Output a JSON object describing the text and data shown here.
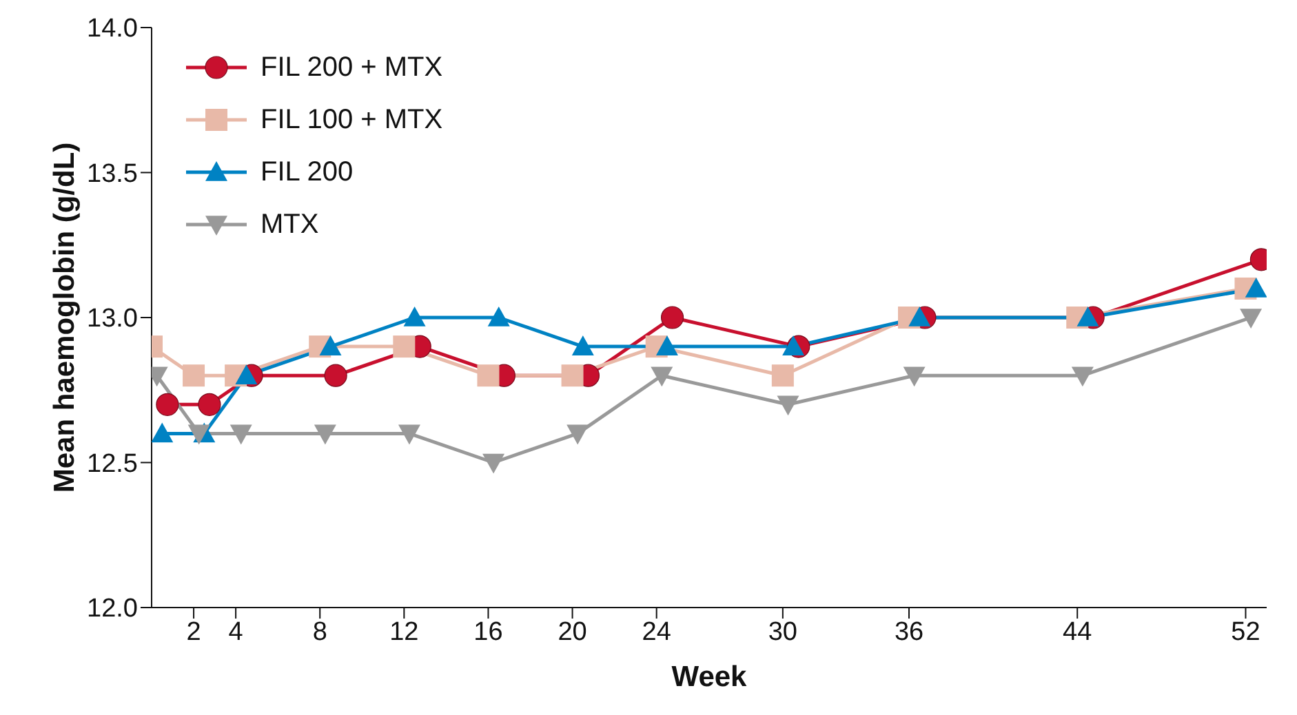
{
  "chart_data": {
    "type": "line",
    "xlabel": "Week",
    "ylabel": "Mean haemoglobin (g/dL)",
    "xlim": [
      0,
      53
    ],
    "xticks": [
      2,
      4,
      8,
      12,
      16,
      20,
      24,
      30,
      36,
      44,
      52
    ],
    "ylim": [
      12,
      14
    ],
    "yticks": [
      {
        "value": 12,
        "label": "12.0"
      },
      {
        "value": 12.5,
        "label": "12.5"
      },
      {
        "value": 13,
        "label": "13.0"
      },
      {
        "value": 13.5,
        "label": "13.5"
      },
      {
        "value": 14,
        "label": "14.0"
      }
    ],
    "grid": false,
    "legend": "top left",
    "line_style": "solid",
    "series": [
      {
        "name": "FIL 200 + MTX",
        "color": "#c8102e",
        "marker": "circle",
        "x": [
          0.75,
          2.75,
          4.75,
          8.75,
          12.75,
          16.75,
          20.75,
          24.75,
          30.75,
          36.75,
          44.75,
          52.75
        ],
        "values": [
          12.7,
          12.7,
          12.8,
          12.8,
          12.9,
          12.8,
          12.8,
          13.0,
          12.9,
          13.0,
          13.0,
          13.2
        ]
      },
      {
        "name": "FIL 100 + MTX",
        "color": "#e8b9a8",
        "marker": "square",
        "x": [
          0,
          2,
          4,
          8,
          12,
          16,
          20,
          24,
          30,
          36,
          44,
          52
        ],
        "values": [
          12.9,
          12.8,
          12.8,
          12.9,
          12.9,
          12.8,
          12.8,
          12.9,
          12.8,
          13.0,
          13.0,
          13.1
        ]
      },
      {
        "name": "FIL 200",
        "color": "#0082c3",
        "marker": "triangle",
        "x": [
          0.5,
          2.5,
          4.5,
          8.5,
          12.5,
          16.5,
          20.5,
          24.5,
          30.5,
          36.5,
          44.5,
          52.5
        ],
        "values": [
          12.6,
          12.6,
          12.8,
          12.9,
          13.0,
          13.0,
          12.9,
          12.9,
          12.9,
          13.0,
          13.0,
          13.1
        ]
      },
      {
        "name": "MTX",
        "color": "#999999",
        "marker": "triangle-down",
        "x": [
          0.25,
          2.25,
          4.25,
          8.25,
          12.25,
          16.25,
          20.25,
          24.25,
          30.25,
          36.25,
          44.25,
          52.25
        ],
        "values": [
          12.8,
          12.6,
          12.6,
          12.6,
          12.6,
          12.5,
          12.6,
          12.8,
          12.7,
          12.8,
          12.8,
          13.0
        ]
      }
    ]
  }
}
